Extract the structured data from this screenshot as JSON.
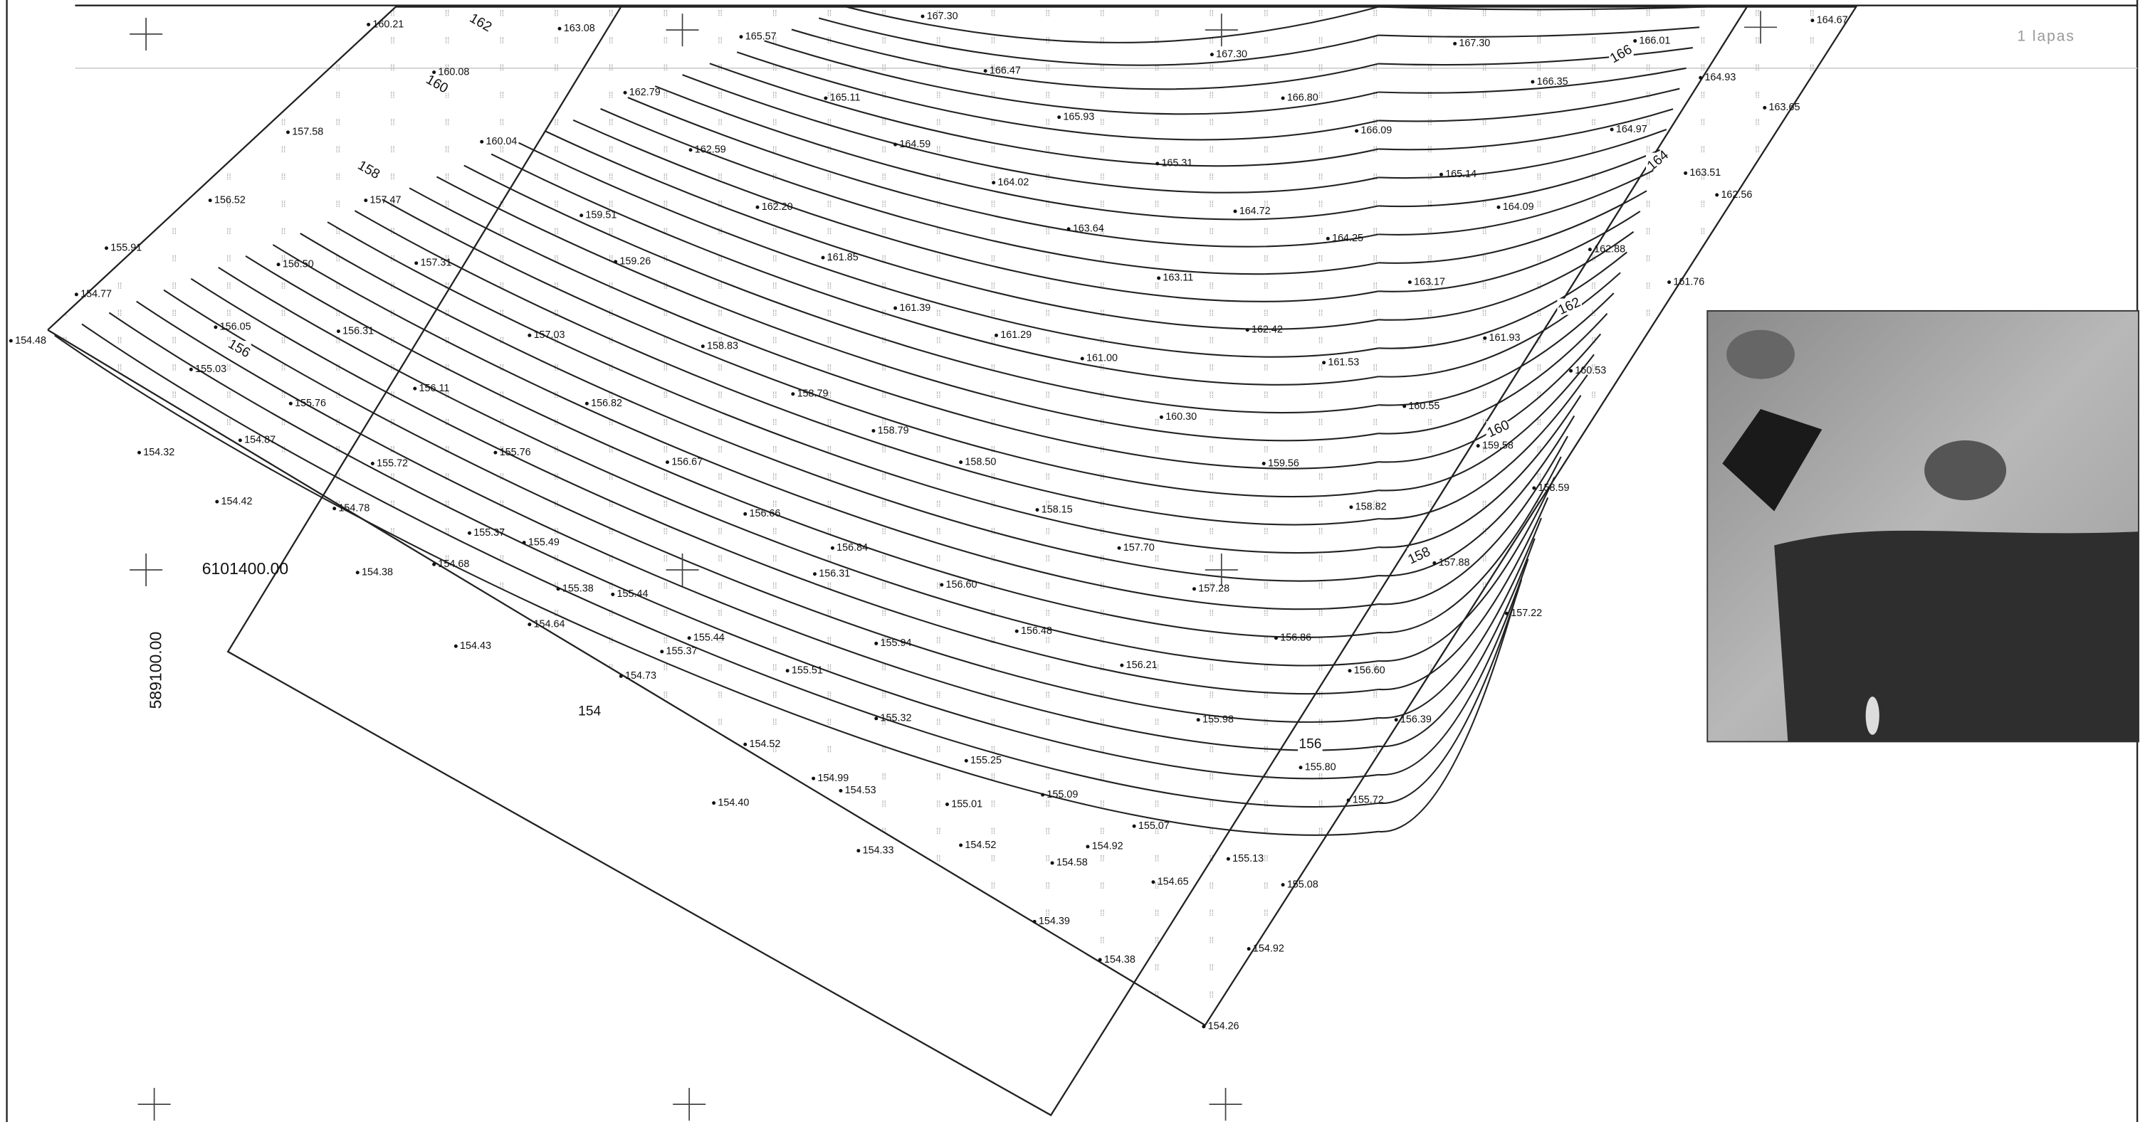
{
  "header": {
    "sheet": "1 lapas"
  },
  "coordinates": {
    "northing": "6101400.00",
    "easting": "589100.00"
  },
  "contour_labels": [
    "162",
    "160",
    "158",
    "156",
    "154",
    "166",
    "164",
    "162",
    "160",
    "158",
    "156"
  ],
  "spot_heights": [
    "160.21",
    "163.08",
    "165.57",
    "167.30",
    "167.30",
    "167.30",
    "166.01",
    "164.67",
    "160.08",
    "162.79",
    "165.11",
    "166.47",
    "166.80",
    "166.35",
    "164.93",
    "157.58",
    "160.04",
    "162.59",
    "164.59",
    "165.93",
    "166.09",
    "164.97",
    "163.65",
    "156.52",
    "157.47",
    "165.31",
    "164.02",
    "165.14",
    "163.51",
    "162.20",
    "159.51",
    "164.72",
    "164.09",
    "162.56",
    "155.91",
    "161.85",
    "163.64",
    "164.25",
    "162.88",
    "157.31",
    "156.50",
    "159.26",
    "163.11",
    "163.17",
    "161.76",
    "154.77",
    "161.39",
    "162.42",
    "156.05",
    "156.31",
    "157.03",
    "161.29",
    "161.93",
    "154.48",
    "158.83",
    "161.00",
    "161.53",
    "160.53",
    "155.03",
    "156.11",
    "158.79",
    "155.76",
    "156.82",
    "160.30",
    "160.55",
    "158.79",
    "154.87",
    "159.58",
    "154.32",
    "155.72",
    "155.76",
    "156.67",
    "158.50",
    "159.56",
    "154.42",
    "154.78",
    "156.66",
    "158.15",
    "158.82",
    "158.59",
    "155.37",
    "155.49",
    "156.84",
    "157.70",
    "157.88",
    "154.68",
    "154.38",
    "156.31",
    "155.38",
    "155.44",
    "156.60",
    "157.28",
    "157.22",
    "154.64",
    "155.44",
    "156.48",
    "156.86",
    "154.43",
    "155.37",
    "155.94",
    "156.21",
    "156.60",
    "154.73",
    "155.51",
    "155.98",
    "156.39",
    "155.32",
    "154.52",
    "155.25",
    "155.80",
    "154.99",
    "154.53",
    "155.09",
    "155.72",
    "154.40",
    "155.01",
    "155.07",
    "154.33",
    "154.52",
    "154.92",
    "155.13",
    "154.58",
    "155.08",
    "154.65",
    "154.39",
    "154.92",
    "154.38",
    "154.26"
  ]
}
